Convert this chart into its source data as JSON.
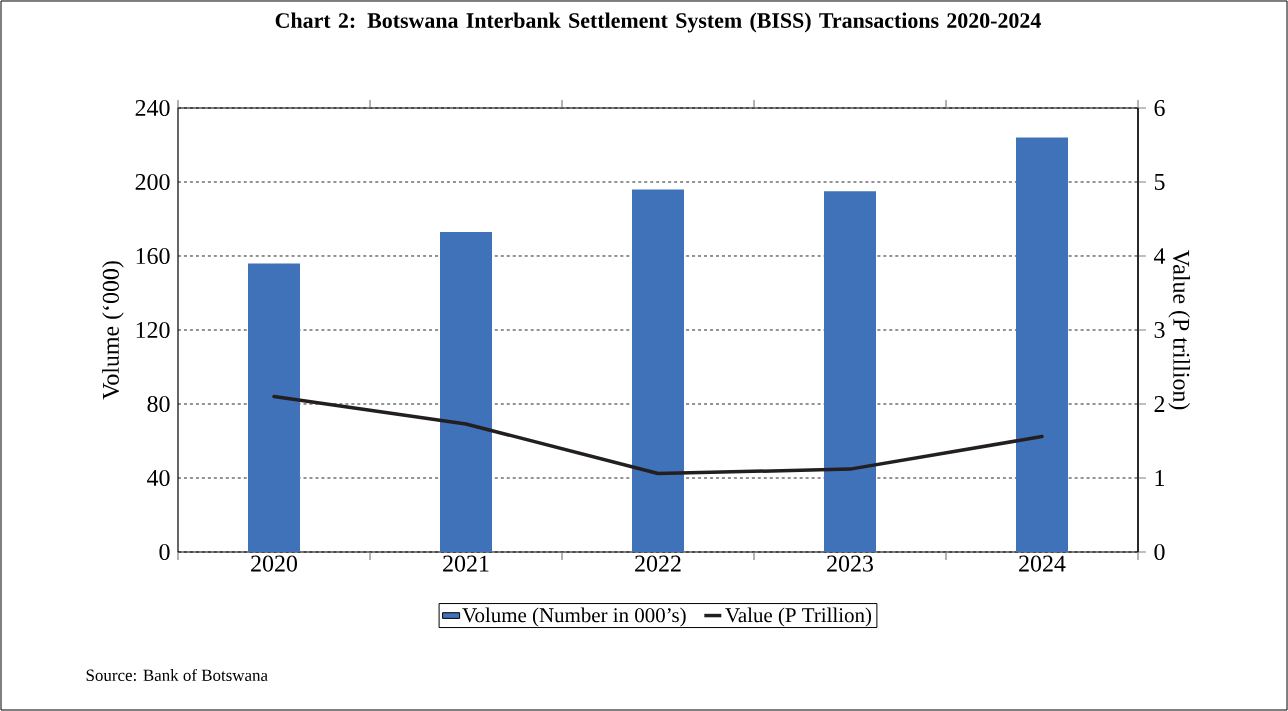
{
  "chart_data": {
    "type": "bar",
    "title": "Chart 2: Botswana Interbank Settlement System (BISS) Transactions 2020-2024",
    "ylabel": "Volume (‘000)",
    "y2label": "Value (P trillion)",
    "categories": [
      "2020",
      "2021",
      "2022",
      "2023",
      "2024"
    ],
    "series": [
      {
        "name": "Volume (Number in 000’s)",
        "color": "#3f72b8",
        "values": [
          156,
          173,
          196,
          195,
          224
        ]
      },
      {
        "name": "Value (P Trillion)",
        "type": "line",
        "axis": "y2",
        "color": "#231f20",
        "values": [
          2.1,
          1.73,
          1.06,
          1.12,
          1.56
        ]
      }
    ],
    "ylim": [
      0,
      240
    ],
    "yticks": [
      0,
      40,
      80,
      120,
      160,
      200,
      240
    ],
    "y2lim": [
      0,
      6
    ],
    "y2ticks": [
      0,
      1,
      2,
      3,
      4,
      5,
      6
    ],
    "grid": "y",
    "legend": "bottom",
    "marker": "none",
    "line_style": "solid",
    "annotations": [
      "Source: Bank of Botswana"
    ]
  }
}
